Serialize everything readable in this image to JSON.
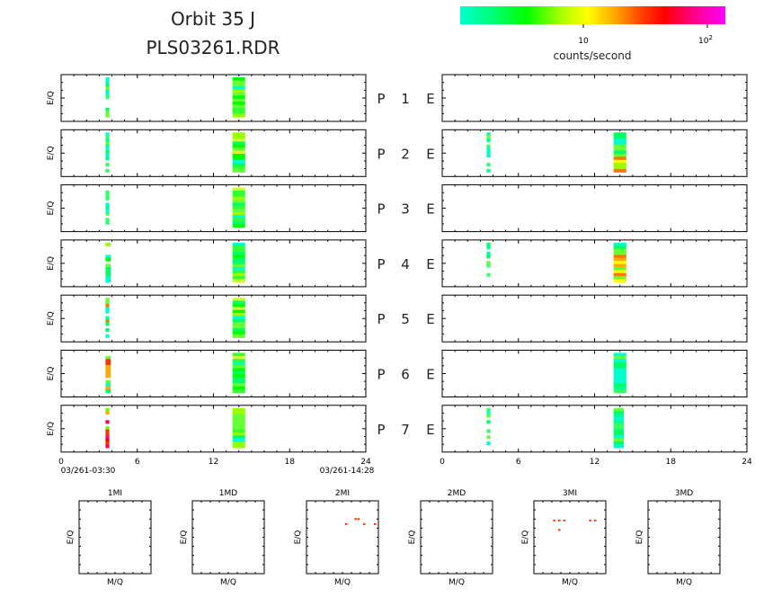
{
  "header": {
    "title_line1": "Orbit 35 J",
    "title_line2": "PLS03261.RDR"
  },
  "colorbar": {
    "label": "counts/second",
    "tick_10": "10",
    "tick_100_base": "10",
    "tick_100_exp": "2",
    "colors": [
      "#00ffd0",
      "#00ff66",
      "#00ff00",
      "#66ff00",
      "#ccff00",
      "#ffff00",
      "#ffaa00",
      "#ff5500",
      "#ff0000",
      "#ff0077",
      "#ff00cc",
      "#ff00ff"
    ]
  },
  "panel_ylabel": "E/Q",
  "panels": [
    {
      "p": "P",
      "n": "1",
      "e": "E"
    },
    {
      "p": "P",
      "n": "2",
      "e": "E"
    },
    {
      "p": "P",
      "n": "3",
      "e": "E"
    },
    {
      "p": "P",
      "n": "4",
      "e": "E"
    },
    {
      "p": "P",
      "n": "5",
      "e": "E"
    },
    {
      "p": "P",
      "n": "6",
      "e": "E"
    },
    {
      "p": "P",
      "n": "7",
      "e": "E"
    }
  ],
  "time_axis": {
    "ticks": [
      "0",
      "6",
      "12",
      "18",
      "24"
    ],
    "start_label": "03/261-03:30",
    "end_label": "03/261-14:28"
  },
  "mass_panels": [
    {
      "title": "1MI",
      "xlabel": "M/Q",
      "ylabel": "E/Q"
    },
    {
      "title": "1MD",
      "xlabel": "M/Q",
      "ylabel": "E/Q"
    },
    {
      "title": "2MI",
      "xlabel": "M/Q",
      "ylabel": "E/Q"
    },
    {
      "title": "2MD",
      "xlabel": "M/Q",
      "ylabel": "E/Q"
    },
    {
      "title": "3MI",
      "xlabel": "M/Q",
      "ylabel": "E/Q"
    },
    {
      "title": "3MD",
      "xlabel": "M/Q",
      "ylabel": "E/Q"
    }
  ],
  "chart_data": {
    "type": "heatmap",
    "title": "Orbit 35 J",
    "subtitle": "PLS03261.RDR",
    "x_range": [
      0,
      24
    ],
    "x_ticks": [
      0,
      6,
      12,
      18,
      24
    ],
    "colorbar_scale": "log",
    "colorbar_label": "counts/second",
    "colorbar_range": [
      1,
      150
    ],
    "left_column": [
      {
        "panel": "P 1",
        "blocks": [
          {
            "t_start": 3.5,
            "t_end": 3.8,
            "intensity": "low"
          },
          {
            "t_start": 13.5,
            "t_end": 14.5,
            "intensity": "low-medium"
          }
        ]
      },
      {
        "panel": "P 2",
        "blocks": [
          {
            "t_start": 3.5,
            "t_end": 3.8,
            "intensity": "low"
          },
          {
            "t_start": 13.5,
            "t_end": 14.5,
            "intensity": "low-medium"
          }
        ]
      },
      {
        "panel": "P 3",
        "blocks": [
          {
            "t_start": 3.5,
            "t_end": 3.8,
            "intensity": "low"
          },
          {
            "t_start": 13.5,
            "t_end": 14.5,
            "intensity": "low-medium"
          }
        ]
      },
      {
        "panel": "P 4",
        "blocks": [
          {
            "t_start": 3.5,
            "t_end": 3.9,
            "intensity": "low-medium"
          },
          {
            "t_start": 13.5,
            "t_end": 14.5,
            "intensity": "low-medium"
          }
        ]
      },
      {
        "panel": "P 5",
        "blocks": [
          {
            "t_start": 3.5,
            "t_end": 3.8,
            "intensity": "medium"
          },
          {
            "t_start": 13.5,
            "t_end": 14.5,
            "intensity": "low-medium"
          }
        ]
      },
      {
        "panel": "P 6",
        "blocks": [
          {
            "t_start": 3.5,
            "t_end": 3.9,
            "intensity": "high"
          },
          {
            "t_start": 13.5,
            "t_end": 14.5,
            "intensity": "low-medium"
          }
        ]
      },
      {
        "panel": "P 7",
        "blocks": [
          {
            "t_start": 3.5,
            "t_end": 3.8,
            "intensity": "very high"
          },
          {
            "t_start": 13.5,
            "t_end": 14.5,
            "intensity": "low-medium"
          }
        ]
      }
    ],
    "right_column": [
      {
        "panel": "P 1 E",
        "blocks": []
      },
      {
        "panel": "P 2 E",
        "blocks": [
          {
            "t_start": 3.5,
            "t_end": 3.8,
            "intensity": "low"
          },
          {
            "t_start": 13.5,
            "t_end": 14.5,
            "intensity": "medium"
          }
        ]
      },
      {
        "panel": "P 3 E",
        "blocks": []
      },
      {
        "panel": "P 4 E",
        "blocks": [
          {
            "t_start": 3.5,
            "t_end": 3.8,
            "intensity": "low"
          },
          {
            "t_start": 13.5,
            "t_end": 14.5,
            "intensity": "medium"
          }
        ]
      },
      {
        "panel": "P 5 E",
        "blocks": []
      },
      {
        "panel": "P 6 E",
        "blocks": [
          {
            "t_start": 13.5,
            "t_end": 14.5,
            "intensity": "low"
          }
        ]
      },
      {
        "panel": "P 7 E",
        "blocks": [
          {
            "t_start": 3.5,
            "t_end": 3.8,
            "intensity": "low"
          },
          {
            "t_start": 13.5,
            "t_end": 14.3,
            "intensity": "low"
          }
        ]
      }
    ],
    "mass_spectra": [
      {
        "panel": "1MI",
        "points": []
      },
      {
        "panel": "1MD",
        "points": []
      },
      {
        "panel": "2MI",
        "points": [
          [
            0.55,
            0.68
          ],
          [
            0.68,
            0.75
          ],
          [
            0.72,
            0.75
          ],
          [
            0.8,
            0.68
          ],
          [
            0.95,
            0.68
          ]
        ]
      },
      {
        "panel": "2MD",
        "points": []
      },
      {
        "panel": "3MI",
        "points": [
          [
            0.28,
            0.73
          ],
          [
            0.35,
            0.73
          ],
          [
            0.42,
            0.73
          ],
          [
            0.35,
            0.6
          ],
          [
            0.78,
            0.73
          ],
          [
            0.85,
            0.73
          ]
        ]
      },
      {
        "panel": "3MD",
        "points": []
      }
    ]
  }
}
